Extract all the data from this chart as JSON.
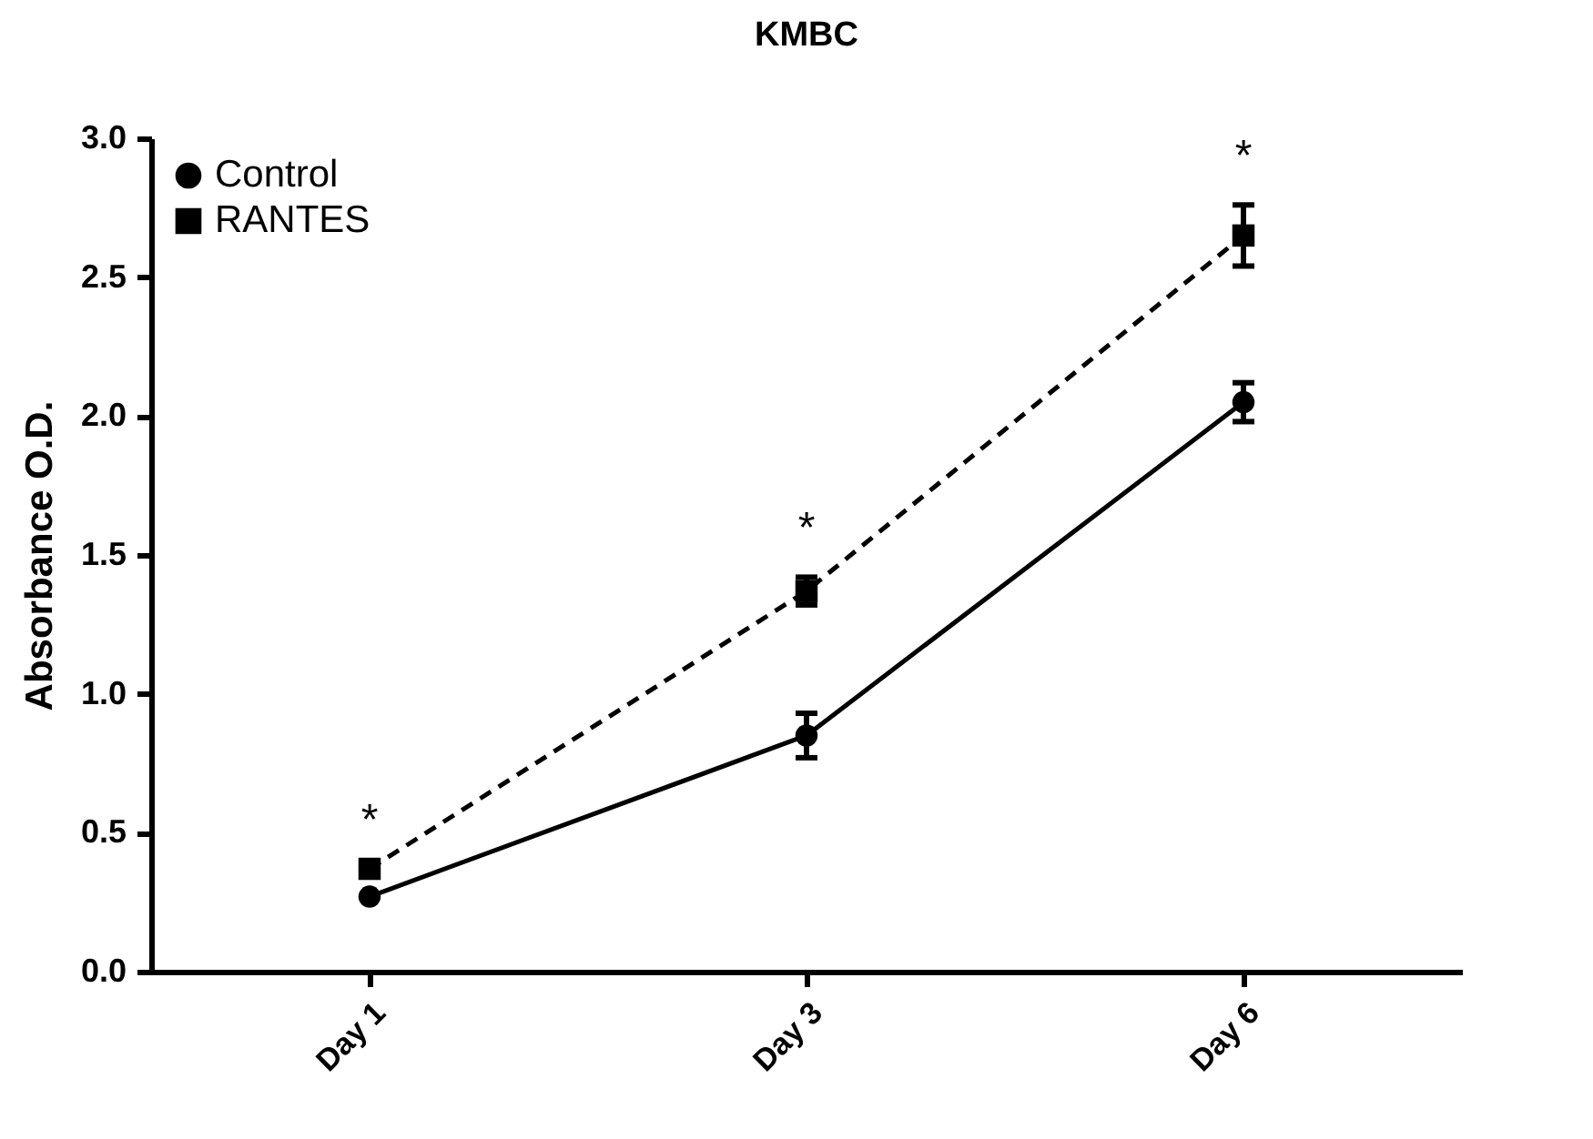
{
  "chart_data": {
    "type": "line",
    "title": "KMBC",
    "ylabel": "Absorbance O.D.",
    "categories": [
      "Day 1",
      "Day 3",
      "Day 6"
    ],
    "series": [
      {
        "name": "Control",
        "color": "#000000",
        "marker": "circle",
        "line_style": "solid",
        "values": [
          0.27,
          0.85,
          2.05
        ],
        "errors": [
          null,
          0.08,
          0.07
        ]
      },
      {
        "name": "RANTES",
        "color": "#000000",
        "marker": "square",
        "line_style": "dashed",
        "values": [
          0.37,
          1.37,
          2.65
        ],
        "errors": [
          null,
          0.05,
          0.11
        ]
      }
    ],
    "ylim": [
      0,
      3
    ],
    "yticks": [
      {
        "value": 0,
        "label": "0.0"
      },
      0.5,
      {
        "value": 1,
        "label": "1.0"
      },
      1.5,
      {
        "value": 2,
        "label": "2.0"
      },
      2.5,
      {
        "value": 3,
        "label": "3.0"
      }
    ],
    "grid": false,
    "legend": "top left",
    "annotations": [
      "*",
      "*",
      "*"
    ]
  }
}
